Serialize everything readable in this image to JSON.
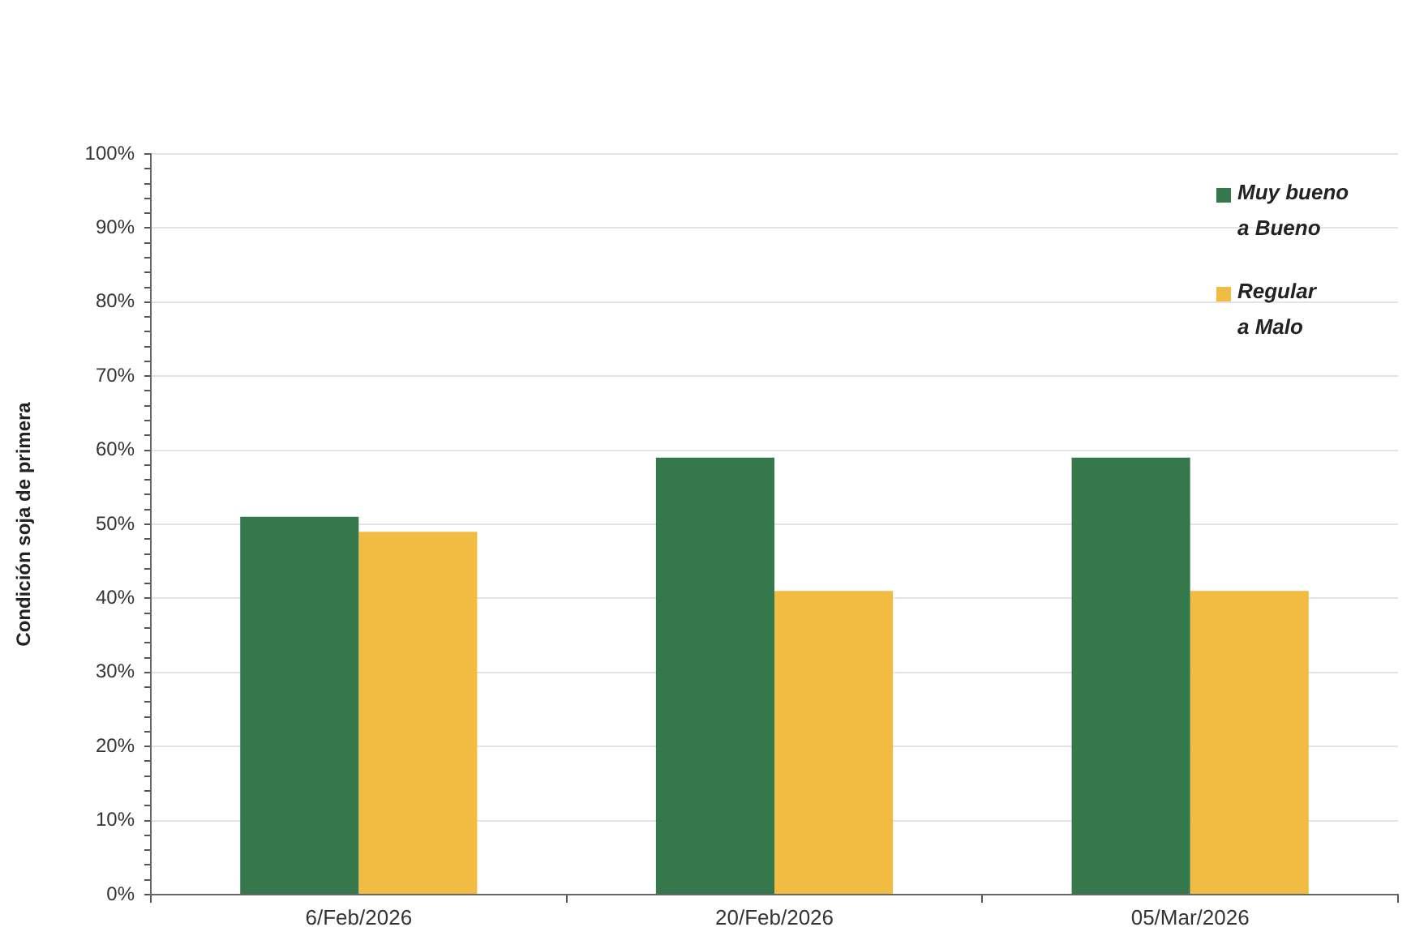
{
  "chart_data": {
    "type": "bar",
    "ylabel": "Condición soja de primera",
    "categories": [
      "6/Feb/2026",
      "20/Feb/2026",
      "05/Mar/2026"
    ],
    "series": [
      {
        "name": "Muy bueno a Bueno",
        "color": "#35784b",
        "values": [
          51,
          59,
          59
        ]
      },
      {
        "name": "Regular a Malo",
        "color": "#f2bb42",
        "values": [
          49,
          41,
          41
        ]
      }
    ],
    "ylim": [
      0,
      100
    ],
    "yticks": [
      {
        "value": 0,
        "label": "0%"
      },
      {
        "value": 2,
        "label": null
      },
      {
        "value": 4,
        "label": null
      },
      {
        "value": 6,
        "label": null
      },
      {
        "value": 8,
        "label": null
      },
      {
        "value": 10,
        "label": "10%"
      },
      {
        "value": 12,
        "label": null
      },
      {
        "value": 14,
        "label": null
      },
      {
        "value": 16,
        "label": null
      },
      {
        "value": 18,
        "label": null
      },
      {
        "value": 20,
        "label": "20%"
      },
      {
        "value": 22,
        "label": null
      },
      {
        "value": 24,
        "label": null
      },
      {
        "value": 26,
        "label": null
      },
      {
        "value": 28,
        "label": null
      },
      {
        "value": 30,
        "label": "30%"
      },
      {
        "value": 32,
        "label": null
      },
      {
        "value": 34,
        "label": null
      },
      {
        "value": 36,
        "label": null
      },
      {
        "value": 38,
        "label": null
      },
      {
        "value": 40,
        "label": "40%"
      },
      {
        "value": 42,
        "label": null
      },
      {
        "value": 44,
        "label": null
      },
      {
        "value": 46,
        "label": null
      },
      {
        "value": 48,
        "label": null
      },
      {
        "value": 50,
        "label": "50%"
      },
      {
        "value": 52,
        "label": null
      },
      {
        "value": 54,
        "label": null
      },
      {
        "value": 56,
        "label": null
      },
      {
        "value": 58,
        "label": null
      },
      {
        "value": 60,
        "label": "60%"
      },
      {
        "value": 62,
        "label": null
      },
      {
        "value": 64,
        "label": null
      },
      {
        "value": 66,
        "label": null
      },
      {
        "value": 68,
        "label": null
      },
      {
        "value": 70,
        "label": "70%"
      },
      {
        "value": 72,
        "label": null
      },
      {
        "value": 74,
        "label": null
      },
      {
        "value": 76,
        "label": null
      },
      {
        "value": 78,
        "label": null
      },
      {
        "value": 80,
        "label": "80%"
      },
      {
        "value": 82,
        "label": null
      },
      {
        "value": 84,
        "label": null
      },
      {
        "value": 86,
        "label": null
      },
      {
        "value": 88,
        "label": null
      },
      {
        "value": 90,
        "label": "90%"
      },
      {
        "value": 92,
        "label": null
      },
      {
        "value": 94,
        "label": null
      },
      {
        "value": 96,
        "label": null
      },
      {
        "value": 98,
        "label": null
      },
      {
        "value": 100,
        "label": "100%"
      }
    ],
    "grid": "y",
    "legend": "top right"
  }
}
